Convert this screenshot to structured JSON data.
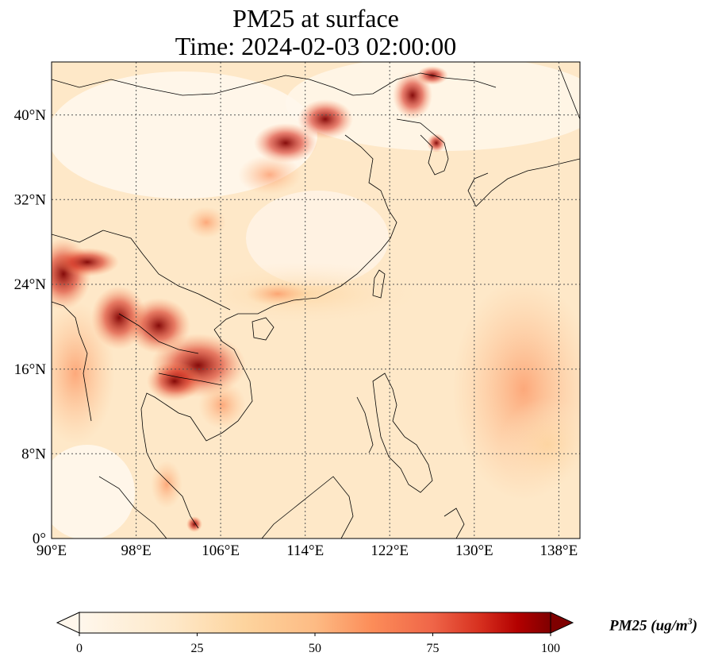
{
  "title": {
    "line1": "PM25 at surface",
    "line2": "Time: 2024-02-03 02:00:00"
  },
  "map": {
    "lon_range": [
      90,
      140
    ],
    "lat_range": [
      0,
      45
    ],
    "x_ticks": [
      "90°E",
      "98°E",
      "106°E",
      "114°E",
      "122°E",
      "130°E",
      "138°E"
    ],
    "y_ticks": [
      "0°",
      "8°N",
      "16°N",
      "24°N",
      "32°N",
      "40°N"
    ],
    "gridlines": "dotted",
    "coastlines": true
  },
  "colorbar": {
    "colormap": "OrRd",
    "ticks": [
      "0",
      "25",
      "50",
      "75",
      "100"
    ],
    "range": [
      0,
      100
    ],
    "extend": "both",
    "label": "PM25 (ug/m",
    "label_superscript": "3",
    "label_end": ")"
  },
  "colors": {
    "low": "#fff7ec",
    "mid": "#fdbb84",
    "high": "#d7301f",
    "max": "#7f0000"
  }
}
